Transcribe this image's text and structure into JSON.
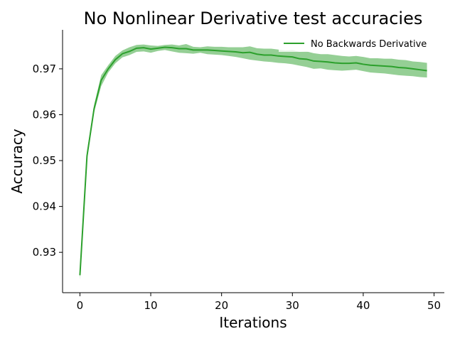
{
  "chart_data": {
    "type": "line",
    "title": "No Nonlinear Derivative test accuracies",
    "xlabel": "Iterations",
    "ylabel": "Accuracy",
    "xlim": [
      -2.45,
      51.45
    ],
    "ylim": [
      0.9212,
      0.9785
    ],
    "xticks": [
      0,
      10,
      20,
      30,
      40,
      50
    ],
    "yticks": [
      0.93,
      0.94,
      0.95,
      0.96,
      0.97
    ],
    "xtick_labels": [
      "0",
      "10",
      "20",
      "30",
      "40",
      "50"
    ],
    "ytick_labels": [
      "0.93",
      "0.94",
      "0.95",
      "0.96",
      "0.97"
    ],
    "grid": false,
    "legend_position": "upper-right",
    "series": [
      {
        "name": "No Backwards Derivative",
        "color": "#2ca02c",
        "band_color": "#2ca02c",
        "x": [
          0,
          1,
          2,
          3,
          4,
          5,
          6,
          7,
          8,
          9,
          10,
          11,
          12,
          13,
          14,
          15,
          16,
          17,
          18,
          19,
          20,
          21,
          22,
          23,
          24,
          25,
          26,
          27,
          28,
          29,
          30,
          31,
          32,
          33,
          34,
          35,
          36,
          37,
          38,
          39,
          40,
          41,
          42,
          43,
          44,
          45,
          46,
          47,
          48,
          49
        ],
        "y": [
          0.925,
          0.951,
          0.9613,
          0.9675,
          0.97,
          0.972,
          0.9733,
          0.9738,
          0.9745,
          0.9746,
          0.9743,
          0.9745,
          0.9747,
          0.9746,
          0.9744,
          0.9744,
          0.9741,
          0.9741,
          0.9741,
          0.974,
          0.9739,
          0.9738,
          0.9737,
          0.9735,
          0.9736,
          0.9732,
          0.973,
          0.973,
          0.9728,
          0.9727,
          0.9726,
          0.9722,
          0.9721,
          0.9717,
          0.9716,
          0.9715,
          0.9713,
          0.9712,
          0.9712,
          0.9713,
          0.971,
          0.9708,
          0.9707,
          0.9706,
          0.9705,
          0.9703,
          0.9702,
          0.97,
          0.9698,
          0.9696
        ],
        "lower": [
          0.924,
          0.9502,
          0.9605,
          0.9662,
          0.9692,
          0.9712,
          0.9725,
          0.973,
          0.9737,
          0.9738,
          0.9735,
          0.9739,
          0.9741,
          0.9738,
          0.9735,
          0.9734,
          0.9733,
          0.9735,
          0.9732,
          0.9731,
          0.973,
          0.9728,
          0.9726,
          0.9723,
          0.972,
          0.9718,
          0.9716,
          0.9715,
          0.9713,
          0.9712,
          0.971,
          0.9707,
          0.9704,
          0.97,
          0.9701,
          0.9698,
          0.9697,
          0.9696,
          0.9697,
          0.9698,
          0.9695,
          0.9692,
          0.9691,
          0.969,
          0.9688,
          0.9686,
          0.9685,
          0.9684,
          0.9682,
          0.9681
        ],
        "upper": [
          0.926,
          0.952,
          0.9621,
          0.9686,
          0.9708,
          0.9728,
          0.974,
          0.9747,
          0.9752,
          0.9753,
          0.9751,
          0.975,
          0.9752,
          0.9753,
          0.9751,
          0.9754,
          0.9748,
          0.9747,
          0.9749,
          0.9748,
          0.9748,
          0.9747,
          0.9747,
          0.9747,
          0.9749,
          0.9745,
          0.9744,
          0.9744,
          0.9742,
          0.974,
          0.9741,
          0.9737,
          0.9738,
          0.9734,
          0.9732,
          0.9732,
          0.973,
          0.9728,
          0.9727,
          0.9728,
          0.9726,
          0.9723,
          0.9723,
          0.9722,
          0.9722,
          0.972,
          0.9719,
          0.9716,
          0.9715,
          0.9713
        ]
      }
    ]
  }
}
